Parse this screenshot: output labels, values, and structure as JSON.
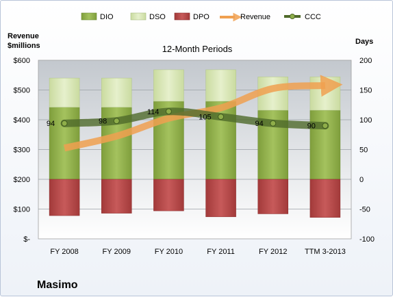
{
  "chart_data": {
    "type": "bar",
    "title": "12-Month Periods",
    "company": "Masimo",
    "left_axis_title": [
      "Revenue",
      "$millions"
    ],
    "right_axis_title": "Days",
    "categories": [
      "FY 2008",
      "FY 2009",
      "FY 2010",
      "FY 2011",
      "FY 2012",
      "TTM 3-2013"
    ],
    "left_axis": {
      "min": 0,
      "max": 600,
      "step": 100,
      "tick_labels": [
        "$-",
        "$100",
        "$200",
        "$300",
        "$400",
        "$500",
        "$600"
      ]
    },
    "right_axis": {
      "min": -100,
      "max": 200,
      "step": 50,
      "tick_labels": [
        "-100",
        "-50",
        "0",
        "50",
        "100",
        "150",
        "200"
      ]
    },
    "legend": [
      "DIO",
      "DSO",
      "DPO",
      "Revenue",
      "CCC"
    ],
    "legend_position": "top",
    "grid": true,
    "series": [
      {
        "name": "DIO",
        "axis": "days",
        "color": "#8fae4a",
        "values": [
          121,
          121,
          131,
          131,
          116,
          116
        ]
      },
      {
        "name": "DSO",
        "axis": "days",
        "color": "#d6e6b0",
        "values": [
          49,
          49,
          53,
          53,
          56,
          56
        ]
      },
      {
        "name": "DPO",
        "axis": "days",
        "color": "#b84848",
        "values": [
          -61,
          -57,
          -53,
          -63,
          -58,
          -64
        ]
      },
      {
        "name": "Revenue",
        "axis": "revenue",
        "color": "#f0a050",
        "values": [
          305,
          345,
          405,
          440,
          505,
          515
        ]
      },
      {
        "name": "CCC",
        "axis": "days",
        "color": "#4f6a2a",
        "values": [
          94,
          98,
          114,
          105,
          94,
          90
        ],
        "data_labels": [
          "94",
          "98",
          "114",
          "105",
          "94",
          "90"
        ]
      }
    ]
  }
}
